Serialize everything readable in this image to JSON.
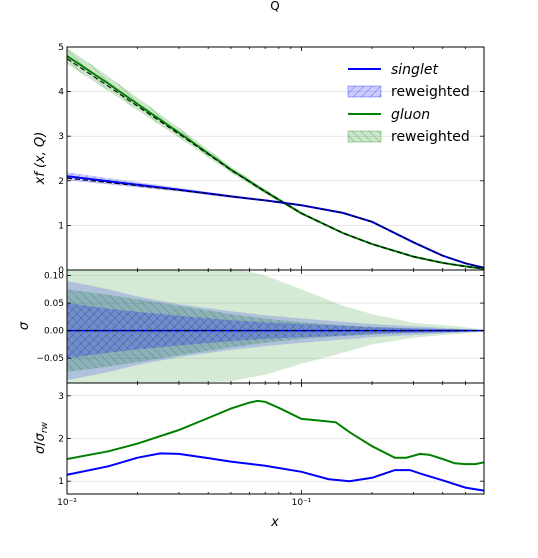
{
  "figure_title": "Q",
  "chart_data": [
    {
      "type": "line",
      "panel": "top",
      "xlabel": "",
      "ylabel": "xf (x, Q)",
      "xscale": "log",
      "xlim": [
        0.01,
        0.6
      ],
      "ylim": [
        0,
        5
      ],
      "yticks": [
        0,
        1,
        2,
        3,
        4,
        5
      ],
      "ytick_labels": [
        "0",
        "1",
        "2",
        "3",
        "4",
        "5"
      ],
      "grid": "horizontal",
      "legend_position": "top-right",
      "legend": [
        {
          "label": "singlet",
          "kind": "line",
          "color": "#0000ff",
          "italic": true
        },
        {
          "label": "reweighted",
          "kind": "hatched-band",
          "color": "#0000ff",
          "italic": false
        },
        {
          "label": "gluon",
          "kind": "line",
          "color": "#008000",
          "italic": true
        },
        {
          "label": "reweighted",
          "kind": "hatched-band",
          "color": "#008000",
          "italic": false
        }
      ],
      "series": [
        {
          "name": "singlet",
          "color": "#0000ff",
          "x": [
            0.01,
            0.015,
            0.02,
            0.03,
            0.05,
            0.07,
            0.1,
            0.15,
            0.2,
            0.3,
            0.4,
            0.5,
            0.6
          ],
          "values": [
            2.1,
            1.99,
            1.91,
            1.8,
            1.65,
            1.56,
            1.45,
            1.28,
            1.08,
            0.62,
            0.32,
            0.15,
            0.05
          ],
          "band_halfwidth": [
            0.09,
            0.07,
            0.06,
            0.04,
            0.03,
            0.02,
            0.02,
            0.01,
            0.01,
            0.01,
            0.005,
            0.003,
            0.002
          ],
          "reweighted_values": [
            2.06,
            1.96,
            1.89,
            1.79,
            1.65,
            1.56,
            1.45,
            1.28,
            1.08,
            0.62,
            0.32,
            0.15,
            0.05
          ]
        },
        {
          "name": "gluon",
          "color": "#008000",
          "x": [
            0.01,
            0.015,
            0.02,
            0.03,
            0.05,
            0.07,
            0.1,
            0.15,
            0.2,
            0.3,
            0.4,
            0.5,
            0.6
          ],
          "values": [
            4.8,
            4.18,
            3.72,
            3.08,
            2.25,
            1.76,
            1.27,
            0.83,
            0.58,
            0.3,
            0.16,
            0.08,
            0.03
          ],
          "band_halfwidth": [
            0.18,
            0.16,
            0.14,
            0.11,
            0.07,
            0.05,
            0.03,
            0.02,
            0.01,
            0.01,
            0.005,
            0.003,
            0.002
          ],
          "reweighted_values": [
            4.74,
            4.12,
            3.67,
            3.05,
            2.24,
            1.76,
            1.27,
            0.83,
            0.58,
            0.3,
            0.16,
            0.08,
            0.03
          ]
        }
      ]
    },
    {
      "type": "area",
      "panel": "middle",
      "xlabel": "",
      "ylabel": "σ",
      "xscale": "log",
      "xlim": [
        0.01,
        0.6
      ],
      "ylim": [
        -0.095,
        0.11
      ],
      "yticks": [
        -0.05,
        0.0,
        0.05,
        0.1
      ],
      "ytick_labels": [
        "−0.05",
        "0.00",
        "0.05",
        "0.10"
      ],
      "grid": "horizontal",
      "series": [
        {
          "name": "gluon",
          "color": "#008000",
          "x": [
            0.01,
            0.015,
            0.02,
            0.03,
            0.05,
            0.07,
            0.1,
            0.15,
            0.2,
            0.3,
            0.4,
            0.5,
            0.6
          ],
          "outer_upper": [
            0.115,
            0.115,
            0.115,
            0.115,
            0.115,
            0.1,
            0.075,
            0.045,
            0.03,
            0.014,
            0.01,
            0.006,
            0.002
          ],
          "outer_lower": [
            -0.095,
            -0.095,
            -0.095,
            -0.095,
            -0.092,
            -0.08,
            -0.06,
            -0.04,
            -0.025,
            -0.013,
            -0.008,
            -0.005,
            -0.002
          ],
          "inner_upper": [
            0.075,
            0.065,
            0.057,
            0.045,
            0.03,
            0.022,
            0.015,
            0.01,
            0.007,
            0.004,
            0.003,
            0.002,
            0.001
          ],
          "inner_lower": [
            -0.075,
            -0.065,
            -0.057,
            -0.045,
            -0.03,
            -0.022,
            -0.015,
            -0.01,
            -0.007,
            -0.004,
            -0.003,
            -0.002,
            -0.001
          ]
        },
        {
          "name": "singlet",
          "color": "#0000ff",
          "x": [
            0.01,
            0.015,
            0.02,
            0.03,
            0.05,
            0.07,
            0.1,
            0.15,
            0.2,
            0.3,
            0.4,
            0.5,
            0.6
          ],
          "outer_upper": [
            0.09,
            0.075,
            0.062,
            0.048,
            0.035,
            0.028,
            0.022,
            0.016,
            0.012,
            0.008,
            0.005,
            0.003,
            0.001
          ],
          "outer_lower": [
            -0.09,
            -0.075,
            -0.062,
            -0.048,
            -0.035,
            -0.028,
            -0.022,
            -0.016,
            -0.012,
            -0.008,
            -0.005,
            -0.003,
            -0.001
          ],
          "inner_upper": [
            0.05,
            0.04,
            0.034,
            0.027,
            0.019,
            0.015,
            0.012,
            0.009,
            0.006,
            0.004,
            0.003,
            0.002,
            0.001
          ],
          "inner_lower": [
            -0.05,
            -0.04,
            -0.034,
            -0.027,
            -0.019,
            -0.015,
            -0.012,
            -0.009,
            -0.006,
            -0.004,
            -0.003,
            -0.002,
            -0.001
          ]
        }
      ]
    },
    {
      "type": "line",
      "panel": "bottom",
      "xlabel": "x",
      "ylabel": "σ/σ_rw",
      "xscale": "log",
      "xlim": [
        0.01,
        0.6
      ],
      "ylim": [
        0.7,
        3.3
      ],
      "yticks": [
        1,
        2,
        3
      ],
      "ytick_labels": [
        "1",
        "2",
        "3"
      ],
      "xticks": [
        0.01,
        0.1
      ],
      "xtick_labels": [
        "10⁻²",
        "10⁻¹"
      ],
      "grid": "horizontal",
      "series": [
        {
          "name": "gluon",
          "color": "#008000",
          "x": [
            0.01,
            0.015,
            0.02,
            0.03,
            0.04,
            0.05,
            0.06,
            0.065,
            0.07,
            0.08,
            0.09,
            0.1,
            0.12,
            0.14,
            0.16,
            0.2,
            0.25,
            0.28,
            0.32,
            0.35,
            0.4,
            0.45,
            0.5,
            0.55,
            0.6
          ],
          "values": [
            1.52,
            1.7,
            1.88,
            2.2,
            2.48,
            2.7,
            2.84,
            2.88,
            2.86,
            2.72,
            2.58,
            2.46,
            2.42,
            2.38,
            2.15,
            1.82,
            1.55,
            1.55,
            1.64,
            1.62,
            1.52,
            1.42,
            1.4,
            1.4,
            1.44
          ]
        },
        {
          "name": "singlet",
          "color": "#0000ff",
          "x": [
            0.01,
            0.015,
            0.02,
            0.025,
            0.03,
            0.04,
            0.05,
            0.07,
            0.1,
            0.13,
            0.16,
            0.2,
            0.25,
            0.29,
            0.33,
            0.4,
            0.5,
            0.6
          ],
          "values": [
            1.15,
            1.35,
            1.55,
            1.65,
            1.64,
            1.54,
            1.46,
            1.36,
            1.22,
            1.05,
            1.0,
            1.08,
            1.26,
            1.26,
            1.16,
            1.02,
            0.85,
            0.78
          ]
        }
      ]
    }
  ]
}
